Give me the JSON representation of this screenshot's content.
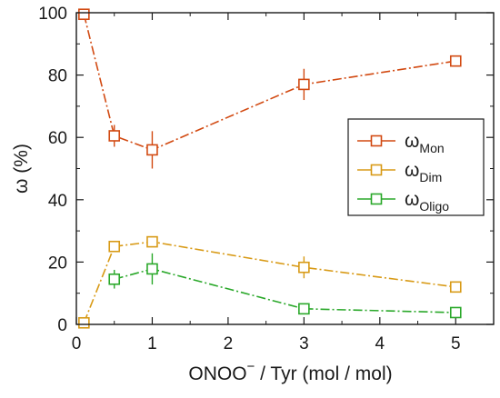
{
  "chart_data": {
    "type": "line",
    "xlabel_main": "ONOO",
    "xlabel_sup": "−",
    "xlabel_rest": " / Tyr (mol / mol)",
    "ylabel": "ω (%)",
    "xlim": [
      0,
      5.5
    ],
    "ylim": [
      0,
      100
    ],
    "xticks": [
      0,
      1,
      2,
      3,
      4,
      5
    ],
    "yticks": [
      0,
      20,
      40,
      60,
      80,
      100
    ],
    "grid": false,
    "legend_position": "right-center",
    "series": [
      {
        "name": "ω",
        "name_sub": "Mon",
        "color": "#d24a12",
        "x": [
          0.1,
          0.5,
          1,
          3,
          5
        ],
        "y": [
          99.5,
          60.5,
          56,
          77,
          84.5
        ],
        "err": [
          0,
          3.5,
          6,
          5,
          0
        ]
      },
      {
        "name": "ω",
        "name_sub": "Dim",
        "color": "#d89a16",
        "x": [
          0.1,
          0.5,
          1,
          3,
          5
        ],
        "y": [
          0.5,
          25,
          26.5,
          18.3,
          12
        ],
        "err": [
          0,
          0,
          0,
          3.5,
          0
        ]
      },
      {
        "name": "ω",
        "name_sub": "Oligo",
        "color": "#2aa82a",
        "x": [
          0.5,
          1,
          3,
          5
        ],
        "y": [
          14.5,
          17.8,
          5,
          3.8
        ],
        "err": [
          3,
          5,
          0,
          0
        ]
      }
    ]
  }
}
